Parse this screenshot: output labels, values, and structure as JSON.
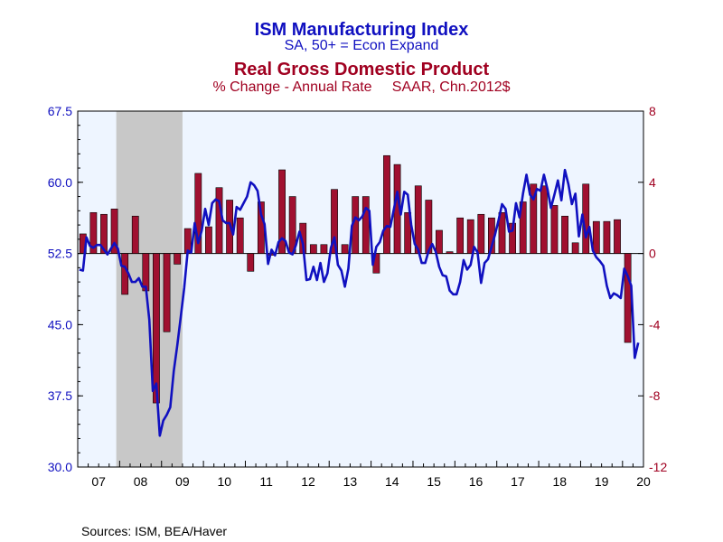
{
  "chart_data": {
    "type": "bar+line",
    "titles": [
      {
        "text": "ISM Manufacturing Index",
        "color": "#1010c0"
      },
      {
        "text": "SA, 50+ = Econ Expand",
        "color": "#1010c0"
      },
      {
        "text": "Real Gross Domestic Product",
        "color": "#a00020"
      },
      {
        "text": "% Change - Annual Rate     SAAR, Chn.2012$",
        "color": "#a00020"
      }
    ],
    "source": "Sources:  ISM, BEA/Haver",
    "x_range": [
      2007.0,
      2020.5
    ],
    "x_tick_labels": [
      "07",
      "08",
      "09",
      "10",
      "11",
      "12",
      "13",
      "14",
      "15",
      "16",
      "17",
      "18",
      "19",
      "20"
    ],
    "left_axis": {
      "ylim": [
        30.0,
        67.5
      ],
      "ticks": [
        "30.0",
        "37.5",
        "45.0",
        "52.5",
        "60.0",
        "67.5"
      ],
      "color": "#1010c0"
    },
    "right_axis": {
      "ylim": [
        -12,
        8
      ],
      "ticks": [
        "-12",
        "-8",
        "-4",
        "0",
        "4",
        "8"
      ],
      "color": "#a00020"
    },
    "recession": {
      "start": 2007.92,
      "end": 2009.5,
      "color": "#c8c8c8"
    },
    "plot_background": "#eef5ff",
    "series": [
      {
        "name": "ISM Manufacturing Index",
        "type": "line",
        "axis": "left",
        "color": "#1010c0",
        "x_start": 2007.0,
        "step_months": 1,
        "values": [
          50.8,
          50.7,
          54.2,
          53.3,
          53.1,
          53.4,
          53.4,
          52.9,
          52.4,
          53.0,
          53.6,
          53.0,
          51.2,
          51.1,
          50.4,
          49.5,
          49.5,
          49.9,
          49.0,
          49.0,
          45.5,
          38.0,
          38.8,
          33.3,
          34.9,
          35.5,
          36.3,
          40.1,
          42.8,
          45.8,
          48.9,
          52.8,
          52.6,
          55.7,
          53.6,
          54.9,
          57.2,
          55.5,
          57.8,
          58.2,
          58.0,
          56.0,
          55.7,
          55.7,
          54.5,
          57.4,
          57.1,
          57.8,
          58.5,
          60.0,
          59.7,
          59.1,
          56.6,
          55.6,
          51.4,
          52.9,
          52.3,
          53.7,
          54.1,
          53.8,
          52.6,
          52.4,
          53.4,
          54.8,
          53.5,
          49.7,
          49.8,
          51.1,
          49.7,
          51.5,
          49.5,
          50.4,
          53.1,
          54.2,
          51.3,
          50.7,
          49.0,
          50.9,
          55.4,
          56.3,
          56.0,
          56.4,
          57.3,
          57.0,
          51.3,
          53.2,
          53.7,
          54.9,
          55.4,
          55.3,
          57.1,
          59.0,
          56.6,
          59.0,
          58.7,
          55.5,
          53.5,
          52.9,
          51.5,
          51.5,
          52.8,
          53.5,
          52.7,
          51.1,
          50.2,
          50.1,
          48.6,
          48.2,
          48.2,
          49.5,
          51.8,
          50.8,
          51.3,
          53.2,
          52.6,
          49.4,
          51.5,
          51.9,
          53.2,
          54.5,
          56.0,
          57.7,
          57.2,
          54.8,
          54.9,
          57.8,
          56.3,
          58.8,
          60.8,
          58.7,
          58.2,
          59.3,
          59.1,
          60.8,
          59.3,
          57.3,
          58.7,
          60.2,
          58.1,
          61.3,
          59.8,
          57.7,
          58.8,
          54.3,
          56.6,
          54.2,
          55.3,
          52.8,
          52.1,
          51.7,
          51.2,
          49.1,
          47.8,
          48.3,
          48.1,
          47.8,
          50.9,
          50.1,
          49.1,
          41.5,
          43.1
        ]
      },
      {
        "name": "Real Gross Domestic Product",
        "type": "bar",
        "axis": "right",
        "color": "#a01030",
        "x_start": 2007.0,
        "step_months": 3,
        "values": [
          1.1,
          2.3,
          2.2,
          2.5,
          -2.3,
          2.1,
          -2.1,
          -8.4,
          -4.4,
          -0.6,
          1.4,
          4.5,
          1.5,
          3.7,
          3.0,
          2.0,
          -1.0,
          2.9,
          -0.1,
          4.7,
          3.2,
          1.7,
          0.5,
          0.5,
          3.6,
          0.5,
          3.2,
          3.2,
          -1.1,
          5.5,
          5.0,
          2.3,
          3.8,
          3.0,
          1.3,
          0.1,
          2.0,
          1.9,
          2.2,
          2.0,
          2.3,
          1.7,
          2.9,
          3.9,
          3.8,
          2.7,
          2.1,
          0.6,
          3.9,
          1.8,
          1.8,
          1.9,
          -5.0
        ]
      }
    ]
  }
}
